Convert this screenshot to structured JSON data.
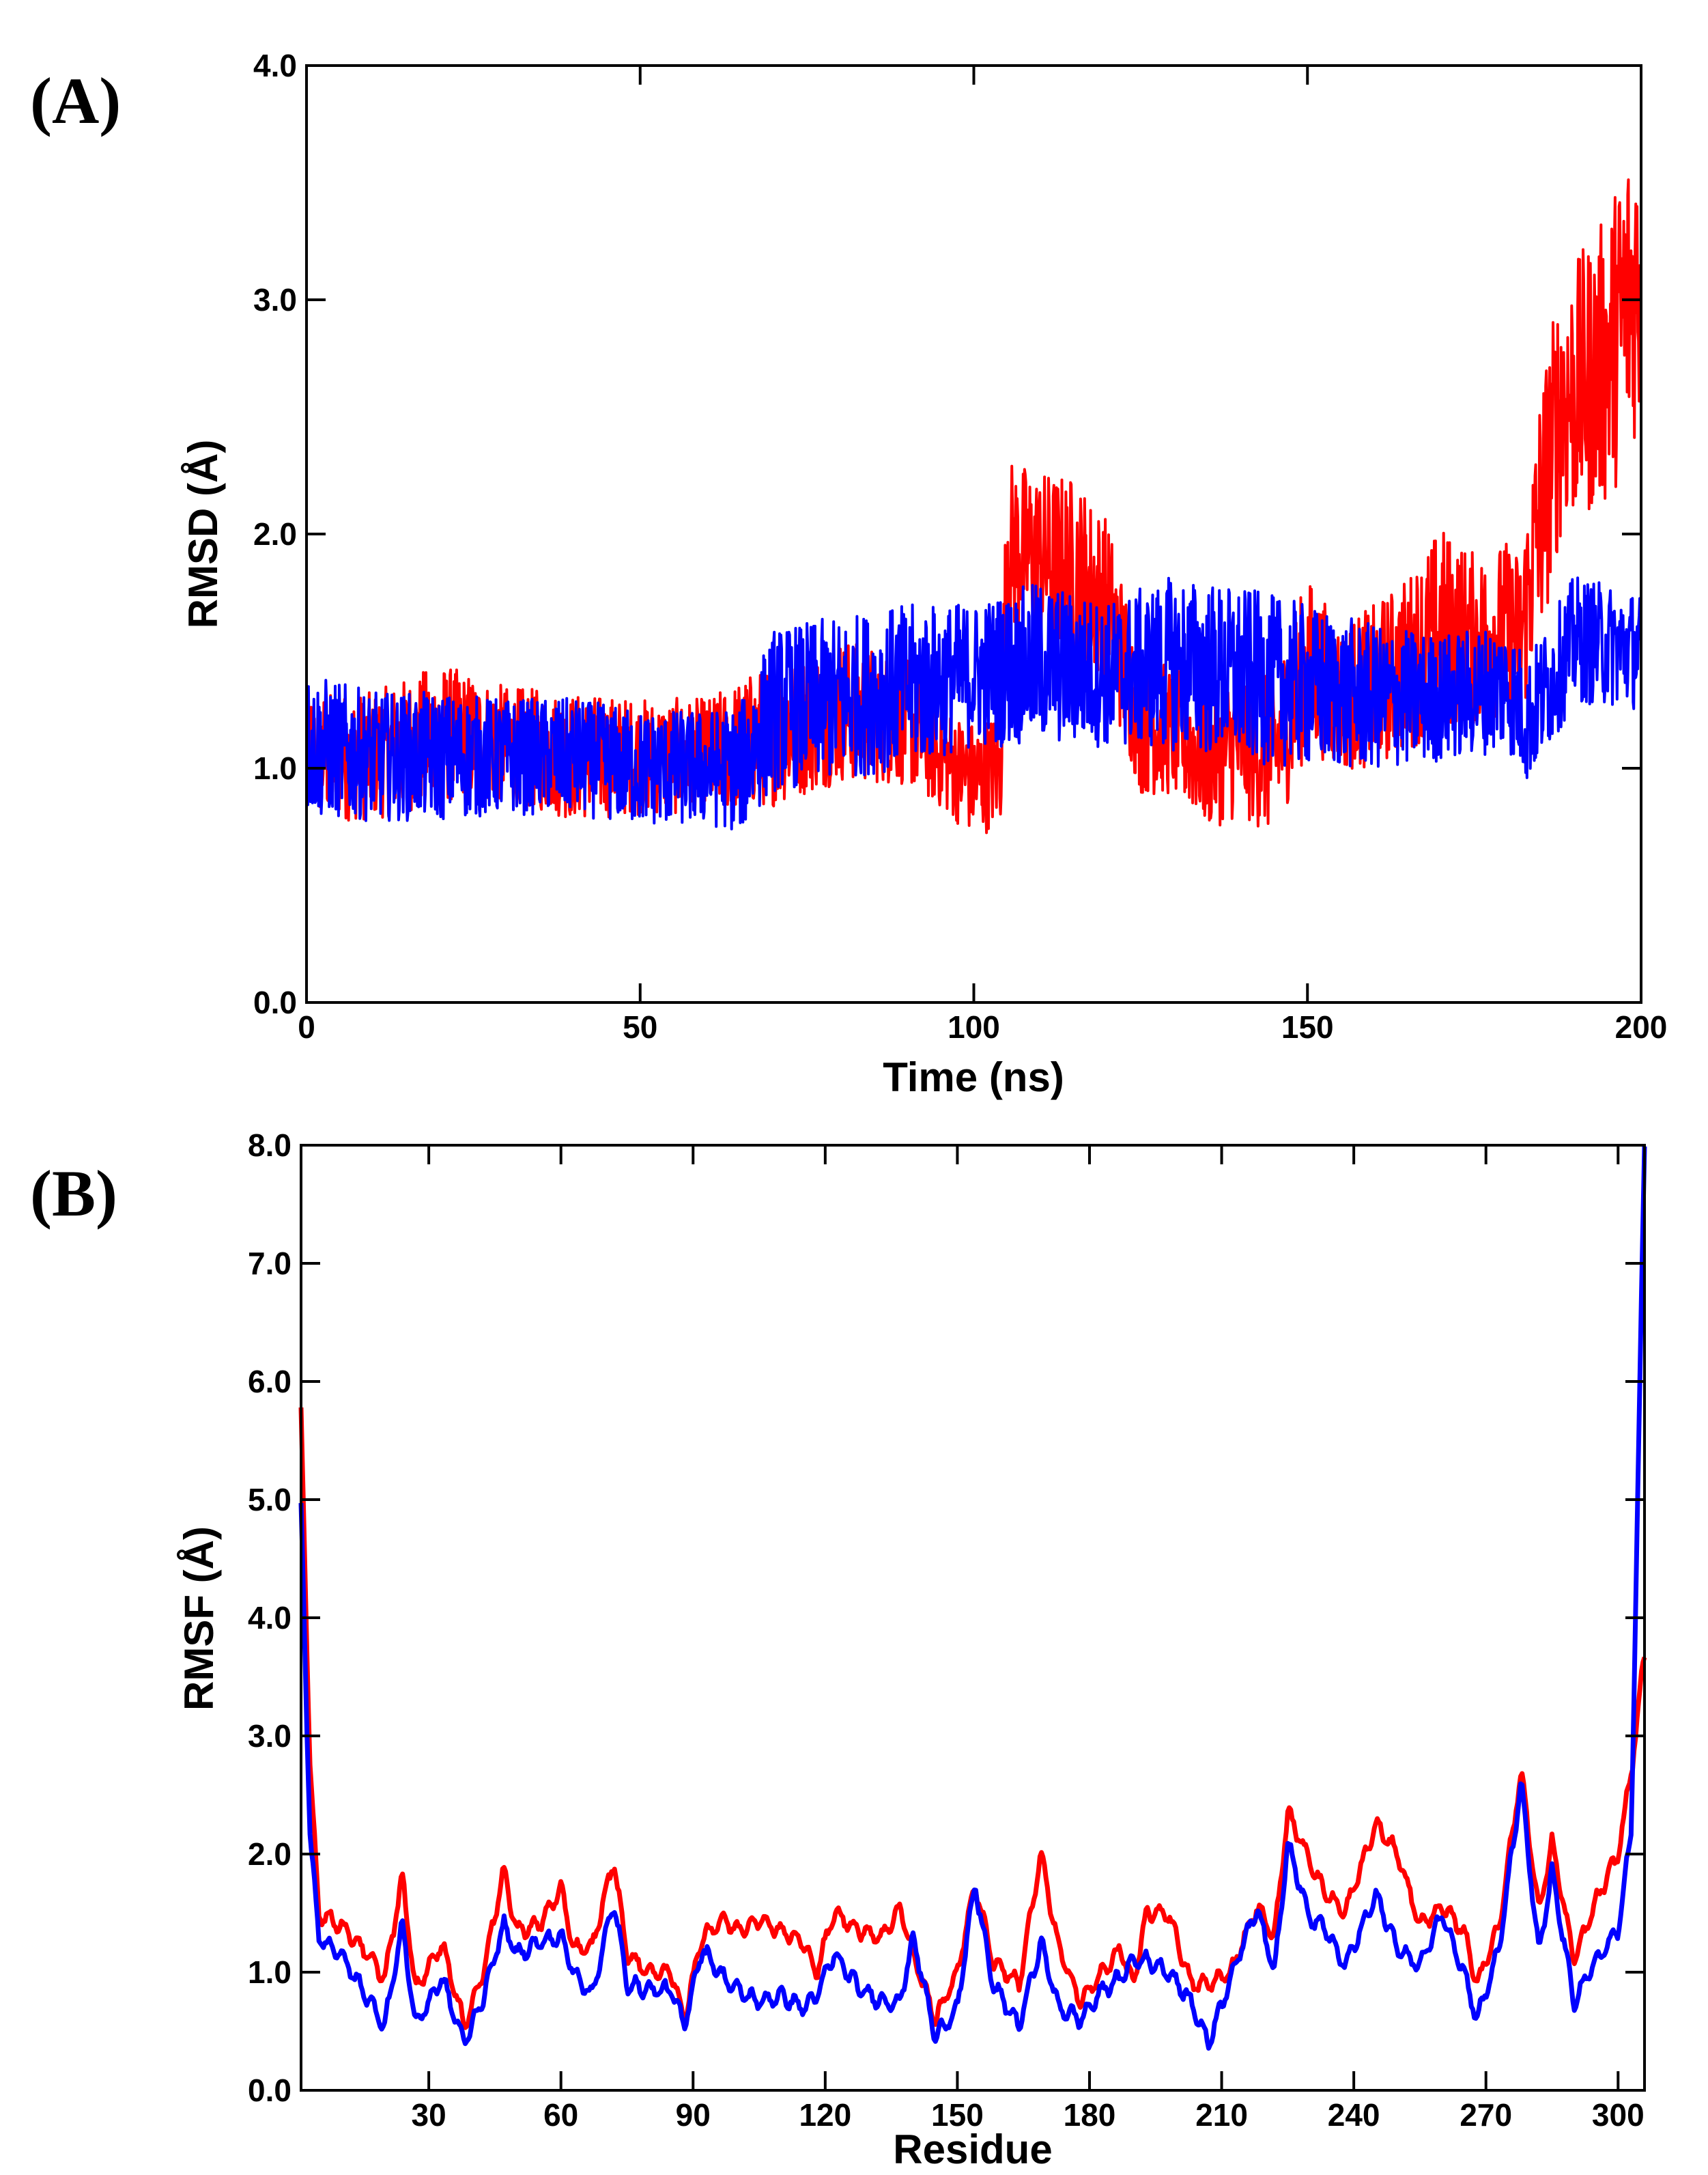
{
  "colors": {
    "series_red": "#ff0000",
    "series_blue": "#0000ff",
    "axis": "#000000"
  },
  "chart_data": [
    {
      "panel_label": "(A)",
      "type": "line",
      "xlabel": "Time (ns)",
      "ylabel": "RMSD (Å)",
      "xlim": [
        0,
        200
      ],
      "ylim": [
        0.0,
        4.0
      ],
      "x_ticks": [
        0,
        50,
        100,
        150,
        200
      ],
      "x_tick_labels": [
        "0",
        "50",
        "100",
        "150",
        "200"
      ],
      "y_ticks": [
        0.0,
        1.0,
        2.0,
        3.0,
        4.0
      ],
      "y_tick_labels": [
        "0.0",
        "1.0",
        "2.0",
        "3.0",
        "4.0"
      ],
      "series": [
        {
          "name": "red",
          "color": "#ff0000",
          "x": [
            0,
            10,
            20,
            30,
            40,
            50,
            60,
            70,
            80,
            90,
            95,
            100,
            104,
            105,
            110,
            115,
            120,
            125,
            130,
            135,
            140,
            145,
            150,
            155,
            160,
            165,
            170,
            175,
            180,
            182,
            185,
            188,
            190,
            195,
            198,
            200
          ],
          "values": [
            1.05,
            1.05,
            1.15,
            1.1,
            1.05,
            1.05,
            1.05,
            1.15,
            1.25,
            1.2,
            1.05,
            0.95,
            1.0,
            1.95,
            1.9,
            1.85,
            1.7,
            1.2,
            1.15,
            1.05,
            1.1,
            1.05,
            1.45,
            1.3,
            1.35,
            1.45,
            1.6,
            1.55,
            1.6,
            1.55,
            2.1,
            2.55,
            2.6,
            2.75,
            3.0,
            3.1
          ],
          "noise": [
            0.22,
            0.22,
            0.24,
            0.2,
            0.22,
            0.2,
            0.2,
            0.25,
            0.25,
            0.22,
            0.18,
            0.2,
            0.2,
            0.3,
            0.3,
            0.32,
            0.3,
            0.25,
            0.22,
            0.25,
            0.25,
            0.28,
            0.3,
            0.25,
            0.28,
            0.3,
            0.35,
            0.3,
            0.3,
            0.3,
            0.45,
            0.45,
            0.45,
            0.5,
            0.55,
            0.5
          ]
        },
        {
          "name": "blue",
          "color": "#0000ff",
          "x": [
            0,
            10,
            20,
            30,
            40,
            50,
            60,
            65,
            70,
            80,
            90,
            100,
            110,
            120,
            130,
            140,
            150,
            160,
            170,
            180,
            183,
            190,
            200
          ],
          "values": [
            1.1,
            1.05,
            1.05,
            1.05,
            1.05,
            1.0,
            1.0,
            1.0,
            1.25,
            1.3,
            1.35,
            1.4,
            1.45,
            1.4,
            1.45,
            1.4,
            1.35,
            1.3,
            1.3,
            1.35,
            1.2,
            1.55,
            1.5
          ],
          "noise": [
            0.25,
            0.22,
            0.22,
            0.2,
            0.2,
            0.2,
            0.2,
            0.22,
            0.28,
            0.28,
            0.28,
            0.25,
            0.28,
            0.25,
            0.3,
            0.3,
            0.28,
            0.25,
            0.22,
            0.22,
            0.22,
            0.22,
            0.2
          ]
        }
      ]
    },
    {
      "panel_label": "(B)",
      "type": "line",
      "xlabel": "Residue",
      "ylabel": "RMSF (Å)",
      "xlim": [
        1,
        306
      ],
      "ylim": [
        0.0,
        8.0
      ],
      "x_ticks": [
        30,
        60,
        90,
        120,
        150,
        180,
        210,
        240,
        270,
        300
      ],
      "x_tick_labels": [
        "30",
        "60",
        "90",
        "120",
        "150",
        "180",
        "210",
        "240",
        "270",
        "300"
      ],
      "y_ticks": [
        0.0,
        1.0,
        2.0,
        3.0,
        4.0,
        5.0,
        6.0,
        7.0,
        8.0
      ],
      "y_tick_labels": [
        "0.0",
        "1.0",
        "2.0",
        "3.0",
        "4.0",
        "5.0",
        "6.0",
        "7.0",
        "8.0"
      ],
      "series": [
        {
          "name": "red",
          "color": "#ff0000",
          "x": [
            1,
            3,
            5,
            10,
            15,
            20,
            24,
            27,
            33,
            38,
            42,
            47,
            50,
            55,
            60,
            63,
            67,
            72,
            75,
            80,
            85,
            88,
            92,
            97,
            100,
            105,
            110,
            115,
            118,
            122,
            128,
            133,
            137,
            140,
            145,
            150,
            154,
            158,
            164,
            169,
            173,
            178,
            183,
            187,
            190,
            193,
            198,
            203,
            207,
            212,
            218,
            222,
            225,
            230,
            233,
            238,
            245,
            250,
            255,
            260,
            265,
            268,
            273,
            278,
            282,
            285,
            290,
            295,
            300,
            303,
            306
          ],
          "values": [
            5.7,
            2.8,
            1.5,
            1.4,
            1.2,
            0.95,
            1.8,
            0.85,
            1.25,
            0.55,
            0.95,
            1.85,
            1.35,
            1.4,
            1.7,
            1.2,
            1.2,
            1.95,
            1.15,
            1.0,
            1.0,
            0.6,
            1.3,
            1.45,
            1.35,
            1.45,
            1.35,
            1.25,
            1.0,
            1.5,
            1.35,
            1.3,
            1.55,
            1.15,
            0.6,
            1.0,
            1.75,
            1.1,
            0.9,
            2.0,
            1.2,
            0.75,
            1.0,
            1.2,
            0.9,
            1.5,
            1.5,
            0.9,
            0.9,
            1.0,
            1.55,
            1.3,
            2.35,
            1.95,
            1.7,
            1.5,
            2.25,
            2.0,
            1.4,
            1.55,
            1.35,
            0.9,
            1.4,
            2.7,
            1.5,
            2.1,
            1.1,
            1.6,
            2.0,
            2.7,
            3.7
          ]
        },
        {
          "name": "blue",
          "color": "#0000ff",
          "x": [
            1,
            3,
            5,
            10,
            15,
            20,
            24,
            27,
            33,
            38,
            42,
            47,
            50,
            55,
            60,
            63,
            67,
            72,
            75,
            80,
            85,
            88,
            92,
            97,
            100,
            105,
            110,
            115,
            118,
            122,
            128,
            133,
            137,
            140,
            145,
            150,
            154,
            158,
            164,
            169,
            173,
            178,
            183,
            187,
            190,
            193,
            198,
            203,
            207,
            212,
            218,
            222,
            225,
            230,
            233,
            238,
            245,
            250,
            255,
            260,
            265,
            268,
            273,
            278,
            282,
            285,
            290,
            295,
            300,
            303,
            306
          ],
          "values": [
            4.9,
            2.2,
            1.3,
            1.15,
            0.85,
            0.55,
            1.4,
            0.55,
            0.95,
            0.4,
            0.75,
            1.4,
            1.15,
            1.25,
            1.3,
            1.0,
            0.8,
            1.6,
            0.9,
            0.85,
            0.85,
            0.55,
            1.2,
            0.95,
            0.85,
            0.75,
            0.8,
            0.7,
            0.8,
            1.15,
            0.85,
            0.75,
            0.75,
            1.3,
            0.45,
            0.7,
            1.75,
            0.9,
            0.55,
            1.25,
            0.7,
            0.6,
            0.85,
            0.95,
            1.1,
            1.1,
            1.0,
            0.75,
            0.4,
            0.95,
            1.55,
            1.0,
            2.1,
            1.45,
            1.4,
            1.05,
            1.65,
            1.2,
            1.05,
            1.5,
            1.0,
            0.6,
            1.2,
            2.6,
            1.15,
            1.85,
            0.75,
            1.1,
            1.35,
            2.2,
            8.0
          ]
        }
      ]
    }
  ]
}
